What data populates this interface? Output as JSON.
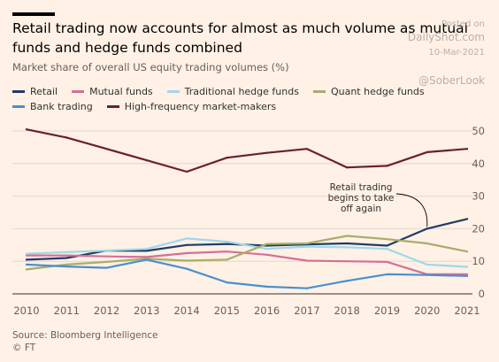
{
  "header": {
    "title": "Retail trading now accounts for almost as much volume as mutual funds and hedge funds combined",
    "subtitle": "Market share of overall US equity trading volumes (%)"
  },
  "watermark": {
    "posted": "Posted on",
    "site": "DailyShot.com",
    "date": "10-Mar-2021",
    "handle": "@SoberLook"
  },
  "footer": {
    "source": "Source: Bloomberg Intelligence",
    "logo": "© FT"
  },
  "chart_data": {
    "type": "line",
    "title": "Retail trading now accounts for almost as much volume as mutual funds and hedge funds combined",
    "subtitle": "Market share of overall US equity trading volumes (%)",
    "xlabel": "",
    "ylabel": "",
    "x": [
      "2010",
      "2011",
      "2012",
      "2013",
      "2014",
      "2015",
      "2016",
      "2017",
      "2018",
      "2019",
      "2020",
      "2021"
    ],
    "ylim": [
      0,
      50
    ],
    "yticks": [
      0,
      10,
      20,
      30,
      40,
      50
    ],
    "grid": "horizontal",
    "legend_position": "top",
    "series": [
      {
        "name": "Retail",
        "color": "#1f3c67",
        "values": [
          10.5,
          11,
          13.3,
          13.2,
          15,
          15.3,
          14.8,
          15.2,
          15.5,
          14.8,
          20,
          23
        ]
      },
      {
        "name": "Mutual funds",
        "color": "#d4709a",
        "values": [
          11.8,
          11.8,
          11.5,
          11.3,
          12.5,
          13,
          12,
          10.2,
          10,
          9.8,
          6,
          6
        ]
      },
      {
        "name": "Traditional hedge funds",
        "color": "#9fd8ea",
        "values": [
          12.3,
          12.8,
          13.3,
          13.8,
          17,
          16,
          13.8,
          14.5,
          14.3,
          13.8,
          9,
          8.3
        ]
      },
      {
        "name": "Quant hedge funds",
        "color": "#a6ae6a",
        "values": [
          7.5,
          9,
          9.8,
          10.8,
          10.2,
          10.5,
          15.3,
          15.5,
          17.8,
          16.8,
          15.5,
          13
        ]
      },
      {
        "name": "Bank trading",
        "color": "#4a8fcf",
        "values": [
          9,
          8.4,
          8,
          10.5,
          7.7,
          3.5,
          2.2,
          1.7,
          4,
          6,
          5.8,
          5.5
        ]
      },
      {
        "name": "High-frequency market-makers",
        "color": "#6a1f2f",
        "values": [
          50.5,
          48,
          44.5,
          41,
          37.5,
          41.8,
          43.3,
          44.5,
          38.8,
          39.3,
          43.5,
          44.5
        ]
      }
    ],
    "annotations": [
      {
        "text": "Retail trading begins to take off again",
        "lines": [
          "Retail trading",
          "begins to take",
          "off again"
        ],
        "x": "2020",
        "series": "Retail"
      }
    ]
  }
}
